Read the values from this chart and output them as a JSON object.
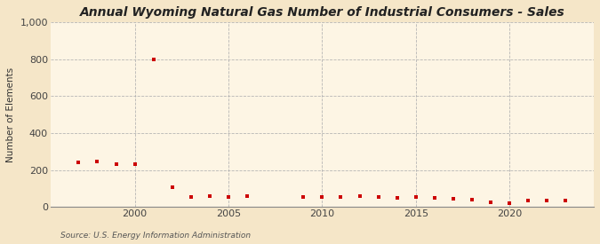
{
  "title": "Annual Wyoming Natural Gas Number of Industrial Consumers - Sales",
  "ylabel": "Number of Elements",
  "source": "Source: U.S. Energy Information Administration",
  "background_color": "#f5e6c8",
  "plot_background_color": "#fdf5e4",
  "grid_color": "#b0b0b0",
  "marker_color": "#cc0000",
  "years": [
    1997,
    1998,
    1999,
    2000,
    2001,
    2002,
    2003,
    2004,
    2005,
    2006,
    2009,
    2010,
    2011,
    2012,
    2013,
    2014,
    2015,
    2016,
    2017,
    2018,
    2019,
    2020,
    2021,
    2022,
    2023
  ],
  "values": [
    240,
    245,
    233,
    232,
    800,
    105,
    55,
    60,
    55,
    60,
    55,
    55,
    55,
    60,
    55,
    50,
    55,
    50,
    45,
    40,
    25,
    20,
    35,
    35,
    35
  ],
  "ylim": [
    0,
    1000
  ],
  "yticks": [
    0,
    200,
    400,
    600,
    800,
    1000
  ],
  "xlim": [
    1995.5,
    2024.5
  ],
  "xticks": [
    2000,
    2005,
    2010,
    2015,
    2020
  ],
  "title_fontsize": 10,
  "ylabel_fontsize": 7.5,
  "tick_fontsize": 8
}
